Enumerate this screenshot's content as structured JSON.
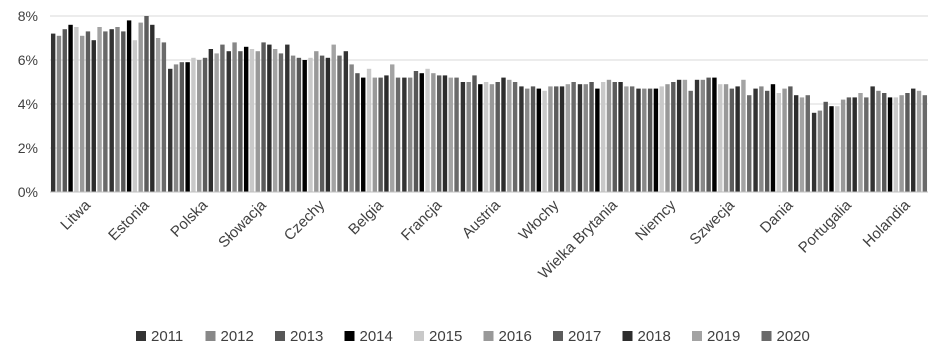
{
  "chart_data": {
    "type": "bar",
    "title": "",
    "xlabel": "",
    "ylabel": "",
    "ylim": [
      0,
      8
    ],
    "yticks": [
      "0%",
      "2%",
      "4%",
      "6%",
      "8%"
    ],
    "grid": true,
    "legend_position": "bottom",
    "categories": [
      "Litwa",
      "Estonia",
      "Polska",
      "Słowacja",
      "Czechy",
      "Belgia",
      "Francja",
      "Austria",
      "Włochy",
      "Wielka Brytania",
      "Niemcy",
      "Szwecja",
      "Dania",
      "Portugalia",
      "Holandia"
    ],
    "series": [
      {
        "name": "2011",
        "color": "#333333",
        "values": [
          7.2,
          7.4,
          5.6,
          6.4,
          6.7,
          6.4,
          5.2,
          5.0,
          4.8,
          4.9,
          4.7,
          5.1,
          4.7,
          3.6,
          4.8
        ]
      },
      {
        "name": "2012",
        "color": "#888888",
        "values": [
          7.1,
          7.5,
          5.8,
          6.8,
          6.2,
          5.8,
          5.2,
          5.0,
          4.7,
          4.9,
          4.7,
          5.1,
          4.8,
          3.7,
          4.6
        ]
      },
      {
        "name": "2013",
        "color": "#575757",
        "values": [
          7.4,
          7.3,
          5.9,
          6.4,
          6.1,
          5.4,
          5.5,
          5.3,
          4.8,
          5.0,
          4.7,
          5.2,
          4.6,
          4.1,
          4.5
        ]
      },
      {
        "name": "2014",
        "color": "#000000",
        "values": [
          7.6,
          7.8,
          5.9,
          6.6,
          6.0,
          5.2,
          5.4,
          4.9,
          4.7,
          4.7,
          4.7,
          5.2,
          4.9,
          3.9,
          4.3
        ]
      },
      {
        "name": "2015",
        "color": "#c9c9c9",
        "values": [
          7.5,
          6.9,
          6.1,
          6.5,
          6.1,
          5.6,
          5.6,
          5.0,
          4.6,
          5.0,
          4.8,
          4.9,
          4.5,
          3.9,
          4.3
        ]
      },
      {
        "name": "2016",
        "color": "#999999",
        "values": [
          7.1,
          7.7,
          6.0,
          6.4,
          6.4,
          5.2,
          5.4,
          4.9,
          4.8,
          5.1,
          4.9,
          4.9,
          4.7,
          4.2,
          4.4
        ]
      },
      {
        "name": "2017",
        "color": "#5c5c5c",
        "values": [
          7.3,
          8.0,
          6.1,
          6.8,
          6.2,
          5.2,
          5.3,
          5.0,
          4.8,
          5.0,
          5.0,
          4.7,
          4.8,
          4.3,
          4.5
        ]
      },
      {
        "name": "2018",
        "color": "#2d2d2d",
        "values": [
          6.9,
          7.6,
          6.5,
          6.7,
          6.1,
          5.3,
          5.3,
          5.2,
          4.8,
          5.0,
          5.1,
          4.8,
          4.4,
          4.3,
          4.7
        ]
      },
      {
        "name": "2019",
        "color": "#a3a3a3",
        "values": [
          7.5,
          7.0,
          6.3,
          6.5,
          6.7,
          5.8,
          5.2,
          5.1,
          4.9,
          4.8,
          5.1,
          5.1,
          4.3,
          4.5,
          4.6
        ]
      },
      {
        "name": "2020",
        "color": "#6a6a6a",
        "values": [
          7.3,
          6.8,
          6.7,
          6.3,
          6.2,
          5.2,
          5.2,
          5.0,
          5.0,
          4.8,
          4.6,
          4.4,
          4.4,
          4.3,
          4.4
        ]
      }
    ]
  }
}
